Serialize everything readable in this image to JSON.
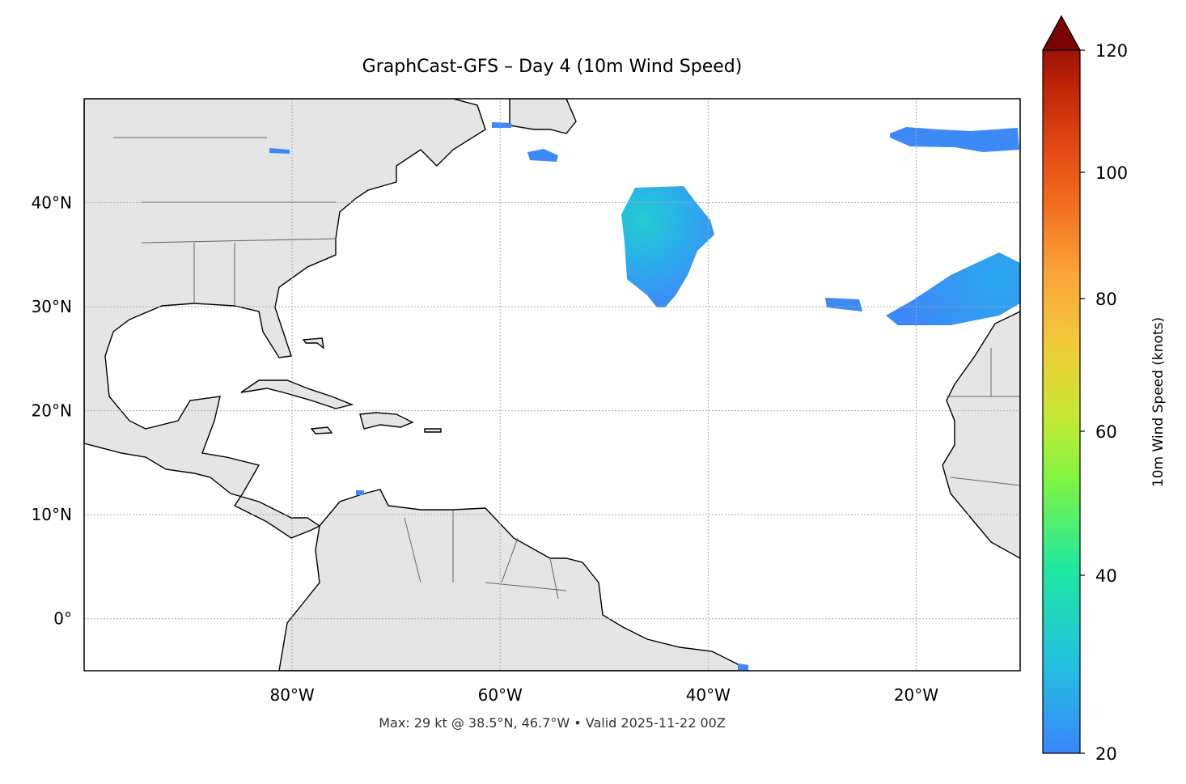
{
  "title": "GraphCast-GFS – Day 4 (10m Wind Speed)",
  "subtitle": "Max: 29 kt @ 38.5°N, 46.7°W • Valid 2025-11-22 00Z",
  "map": {
    "extent": {
      "lon": [
        -100,
        -10
      ],
      "lat": [
        -5,
        50
      ]
    },
    "x_ticks": [
      {
        "value": -80,
        "label": "80°W"
      },
      {
        "value": -60,
        "label": "60°W"
      },
      {
        "value": -40,
        "label": "40°W"
      },
      {
        "value": -20,
        "label": "20°W"
      }
    ],
    "y_ticks": [
      {
        "value": 0,
        "label": "0°"
      },
      {
        "value": 10,
        "label": "10°N"
      },
      {
        "value": 20,
        "label": "20°N"
      },
      {
        "value": 30,
        "label": "30°N"
      },
      {
        "value": 40,
        "label": "40°N"
      }
    ],
    "gridlines": true,
    "land_color": "#e5e5e5",
    "field": "10m wind speed, shown where ≥ 20 kt",
    "max_point": {
      "value_kt": 29,
      "lat": 38.5,
      "lon": -46.7
    }
  },
  "colorbar": {
    "label": "10m Wind Speed (knots)",
    "ticks": [
      "20",
      "40",
      "60",
      "80",
      "100",
      "120"
    ],
    "range": [
      20,
      120
    ],
    "extend": "max",
    "colormap": "turbo",
    "colors": {
      "low": "#3a86fb",
      "c40": "#1ee8a0",
      "c60": "#c8e832",
      "c80": "#fbb03b",
      "c100": "#e04512",
      "high": "#7a0403"
    }
  }
}
